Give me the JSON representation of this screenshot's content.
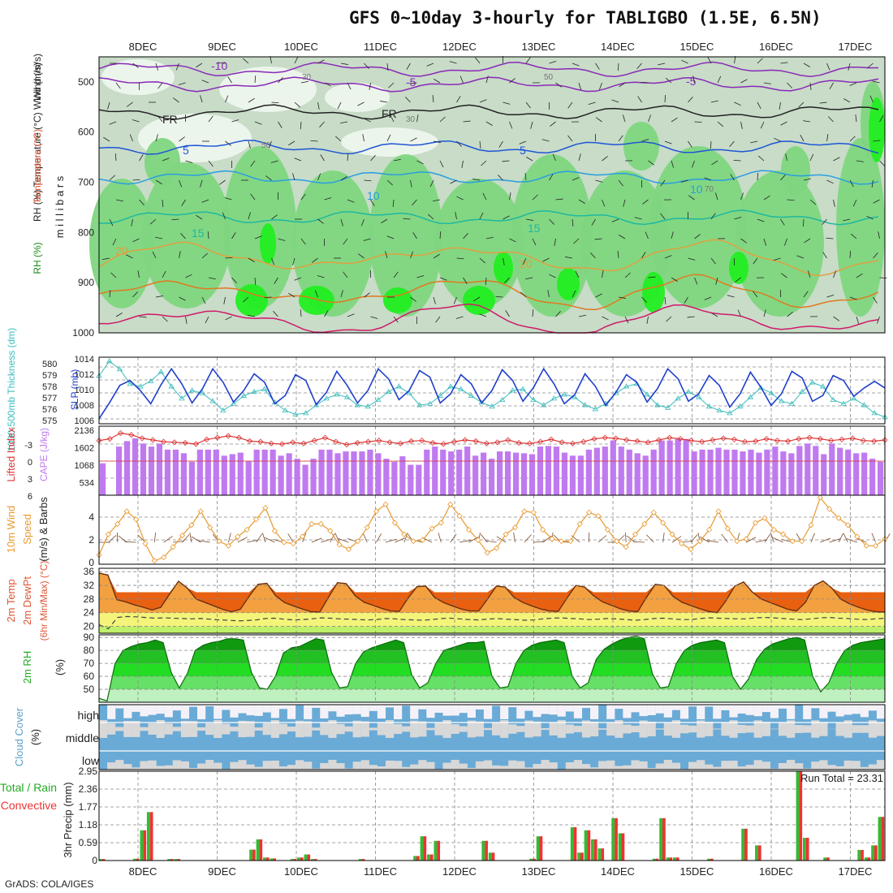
{
  "title": "GFS 0~10day 3-hourly for TABLIGBO (1.5E, 6.5N)",
  "credit": "GrADS: COLA/IGES",
  "colors": {
    "rh_light": "#eef6ee",
    "rh_mid": "#c8dcc8",
    "rh_green": "#7fd67f",
    "rh_bright": "#22ee22",
    "slp": "#1f3fcc",
    "thickness": "#3cbcbc",
    "lifted": "#dd3333",
    "cape": "#c07af0",
    "wind": "#e89a30",
    "barb": "#7a4a2a",
    "cloud_blue": "#6aaad6",
    "cloud_gray": "#d8d8d8",
    "precip_total": "#33bb33",
    "precip_conv": "#ee3333"
  },
  "chart_data": [
    {
      "type": "heatmap",
      "name": "upper_air",
      "xlabels": [
        "8DEC",
        "9DEC",
        "10DEC",
        "11DEC",
        "12DEC",
        "13DEC",
        "14DEC",
        "15DEC",
        "16DEC",
        "17DEC"
      ],
      "ylabel": "(millibars)",
      "ylabel_text": "m i l l i b a r s",
      "legend_labels": [
        "RH (%)",
        "Temperature (°C)",
        "Wind (m/s)"
      ],
      "yticks": [
        "500",
        "600",
        "700",
        "800",
        "900",
        "1000"
      ],
      "ylim": [
        450,
        1000
      ],
      "isotherm_labels": [
        "-10",
        "-5",
        "FR",
        "5",
        "10",
        "15",
        "20",
        "-5",
        "FR",
        "5",
        "10",
        "15",
        "20"
      ],
      "rh_labels": [
        "30",
        "50",
        "30",
        "50",
        "70"
      ]
    },
    {
      "type": "line",
      "name": "slp_thickness",
      "ylabel_left": "1000-500mb Thickness (dm)",
      "ylabel_right": "SLP (mb)",
      "yticks_left": [
        "580",
        "579",
        "578",
        "577",
        "576",
        "575"
      ],
      "yticks_right": [
        "1014",
        "1012",
        "1010",
        "1008",
        "1006"
      ],
      "slp_range": [
        1006,
        1014
      ],
      "slp": [
        1006.6,
        1008.5,
        1010.6,
        1011.2,
        1010.0,
        1008.4,
        1010.7,
        1012.6,
        1010.8,
        1008.5,
        1010.2,
        1012.6,
        1011.0,
        1008.6,
        1010.0,
        1012.0,
        1011.0,
        1008.4,
        1009.4,
        1011.9,
        1011.2,
        1008.3,
        1009.8,
        1012.3,
        1010.6,
        1008.5,
        1010.0,
        1012.6,
        1011.4,
        1008.9,
        1010.0,
        1012.4,
        1011.6,
        1008.5,
        1009.6,
        1011.9,
        1010.8,
        1008.5,
        1010.0,
        1012.5,
        1011.2,
        1008.7,
        1010.3,
        1012.6,
        1010.8,
        1008.4,
        1009.5,
        1012.0,
        1010.5,
        1008.2,
        1009.8,
        1011.9,
        1011.0,
        1008.6,
        1010.2,
        1012.6,
        1011.4,
        1008.7,
        1009.6,
        1011.8,
        1010.6,
        1008.0,
        1009.6,
        1012.2,
        1010.4,
        1008.2,
        1009.6,
        1012.3,
        1011.5,
        1008.7,
        1009.4,
        1011.8,
        1011.2,
        1009.3,
        1010.3,
        1011.1,
        1010.3
      ],
      "thickness": [
        578.6,
        579.7,
        579.1,
        578.0,
        577.8,
        578.2,
        578.9,
        577.8,
        576.9,
        577.5,
        577.3,
        576.7,
        576.0,
        576.5,
        577.1,
        577.4,
        577.6,
        576.6,
        576.0,
        575.7,
        575.8,
        576.4,
        576.9,
        577.2,
        577.0,
        576.4,
        576.3,
        576.8,
        577.4,
        577.8,
        577.3,
        576.4,
        576.5,
        577.1,
        577.8,
        577.6,
        577.1,
        576.6,
        576.3,
        576.8,
        577.5,
        577.6,
        576.8,
        576.4,
        576.9,
        577.2,
        577.0,
        576.4,
        576.1,
        576.5,
        577.3,
        577.8,
        578.0,
        577.2,
        576.4,
        576.2,
        576.9,
        577.4,
        577.0,
        576.3,
        576.0,
        575.8,
        576.3,
        577.0,
        577.7,
        577.3,
        576.7,
        576.5,
        577.4,
        578.1,
        577.8,
        576.8,
        576.5,
        576.9,
        576.4,
        575.8,
        575.5
      ]
    },
    {
      "type": "bar",
      "name": "cape_li",
      "ylabel_left": "Lifted Index",
      "ylabel_right": "CAPE (J/kg)",
      "yticks_left": [
        "-3",
        "0",
        "3",
        "6"
      ],
      "yticks_right": [
        "2136",
        "1602",
        "1068",
        "534"
      ],
      "cape_range": [
        0,
        2136
      ],
      "cape": [
        1050,
        0,
        1600,
        1780,
        1870,
        1700,
        1600,
        1700,
        1500,
        1500,
        1380,
        1100,
        1500,
        1500,
        1500,
        1300,
        1350,
        1400,
        1120,
        1500,
        1500,
        1500,
        1300,
        1380,
        1200,
        1000,
        1200,
        1500,
        1500,
        1380,
        1440,
        1440,
        1440,
        1500,
        1380,
        1200,
        1100,
        1280,
        1000,
        1000,
        1500,
        1600,
        1500,
        1440,
        1500,
        1600,
        1300,
        1400,
        1200,
        1440,
        1440,
        1400,
        1380,
        1350,
        1600,
        1620,
        1600,
        1400,
        1300,
        1300,
        1500,
        1560,
        1600,
        1800,
        1600,
        1500,
        1380,
        1300,
        1500,
        1800,
        1800,
        1850,
        1850,
        1440,
        1500,
        1500,
        1560,
        1500,
        1500,
        1440,
        1500,
        1400,
        1500,
        1600,
        1440,
        1380,
        1620,
        1700,
        1620,
        1350,
        1700,
        1560,
        1500,
        1380,
        1400,
        1200,
        1100
      ],
      "li": [
        -3.5,
        -3.8,
        -4.8,
        -4.5,
        -3.9,
        -3.6,
        -3.3,
        -3.2,
        -3.1,
        -2.9,
        -3.7,
        -4.0,
        -4.3,
        -4.0,
        -3.4,
        -3.3,
        -3.0,
        -2.9,
        -3.2,
        -3.0,
        -3.5,
        -4.0,
        -3.3,
        -2.8,
        -3.1,
        -3.3,
        -3.5,
        -3.2,
        -3.0,
        -3.4,
        -3.5,
        -3.1,
        -2.9,
        -3.3,
        -3.6,
        -3.4,
        -3.0,
        -3.2,
        -3.6,
        -3.1,
        -3.0,
        -3.3,
        -3.7,
        -3.2,
        -3.0,
        -3.3,
        -3.8,
        -4.0,
        -3.9,
        -3.6,
        -3.4,
        -3.2,
        -3.6,
        -4.0,
        -3.8,
        -3.5,
        -3.3,
        -3.6,
        -3.9,
        -3.7,
        -3.3,
        -3.4,
        -3.8,
        -3.5,
        -3.4,
        -3.8,
        -4.0,
        -3.8,
        -3.5,
        -3.7,
        -3.9,
        -3.5,
        -3.4,
        -3.6
      ]
    },
    {
      "type": "line",
      "name": "wind10m",
      "ylabel_lines": [
        "10m Wind",
        "Speed",
        "(m/s) & Barbs"
      ],
      "yticks": [
        "4",
        "2",
        "0"
      ],
      "ylim": [
        0,
        6
      ],
      "speed": [
        0.8,
        2.6,
        3.5,
        4.6,
        3.9,
        1.8,
        0.3,
        0.6,
        1.5,
        2.5,
        3.4,
        4.6,
        3.2,
        2.0,
        1.6,
        2.4,
        3.0,
        3.9,
        4.9,
        2.9,
        1.9,
        1.8,
        2.4,
        3.5,
        3.5,
        2.9,
        1.7,
        1.3,
        2.0,
        3.2,
        4.6,
        5.2,
        3.6,
        2.6,
        2.0,
        2.1,
        3.1,
        3.6,
        5.2,
        4.2,
        3.0,
        2.1,
        1.0,
        1.4,
        2.6,
        3.2,
        4.6,
        4.5,
        3.0,
        2.2,
        2.0,
        2.0,
        3.5,
        4.5,
        4.2,
        3.0,
        2.0,
        1.5,
        2.6,
        3.5,
        4.5,
        3.6,
        2.6,
        1.8,
        1.3,
        2.0,
        3.0,
        4.6,
        3.1,
        2.0,
        2.2,
        3.6,
        4.0,
        3.0,
        2.6,
        2.0,
        2.0,
        3.4,
        5.8,
        4.8,
        4.0,
        3.4,
        2.4,
        1.6,
        1.6,
        2.2
      ]
    },
    {
      "type": "area",
      "name": "temp2m",
      "ylabel_lines": [
        "2m Temp",
        "2m DewPt",
        "(6hr Min/Max) (°C)"
      ],
      "yticks": [
        "36",
        "32",
        "28",
        "24",
        "20"
      ],
      "ylim": [
        18,
        37
      ],
      "temp": [
        35.6,
        35.0,
        27.8,
        27.2,
        26.3,
        25.6,
        24.8,
        25.6,
        29.5,
        33.2,
        31.2,
        28.0,
        27.0,
        26.0,
        25.0,
        24.3,
        25.0,
        28.8,
        32.3,
        32.6,
        29.0,
        27.0,
        26.0,
        25.1,
        24.3,
        24.2,
        28.6,
        32.8,
        32.5,
        29.0,
        27.1,
        26.2,
        25.3,
        24.5,
        24.4,
        28.3,
        31.6,
        31.8,
        28.5,
        27.0,
        26.0,
        25.1,
        24.5,
        24.5,
        28.0,
        31.8,
        31.5,
        28.5,
        27.0,
        26.0,
        25.1,
        24.5,
        24.4,
        28.3,
        32.0,
        31.5,
        29.0,
        27.2,
        26.2,
        25.2,
        24.5,
        24.3,
        28.5,
        32.3,
        32.0,
        28.8,
        27.1,
        26.1,
        25.2,
        24.4,
        24.0,
        27.5,
        31.8,
        33.0,
        30.0,
        28.0,
        27.0,
        26.0,
        25.0,
        24.5,
        27.0,
        32.0,
        33.3,
        31.2,
        28.0,
        26.6,
        25.6,
        24.8,
        24.3,
        24.2
      ],
      "dewpt": [
        20.5,
        19.3,
        22.6,
        22.9,
        22.8,
        22.6,
        22.4,
        22.5,
        22.4,
        22.3,
        22.2,
        22.3,
        22.1,
        21.9,
        21.8,
        21.6,
        21.7,
        21.9,
        22.3,
        22.4,
        22.1,
        21.9,
        22.0,
        22.2,
        22.5,
        22.4,
        22.2,
        22.1,
        22.0,
        21.9,
        22.0,
        22.3,
        22.2,
        22.0,
        21.9,
        21.8,
        22.0,
        22.3,
        22.4,
        22.2,
        22.0,
        21.9,
        22.1,
        22.3,
        22.1,
        22.0,
        21.8,
        21.9,
        22.2,
        22.4,
        22.5,
        22.3,
        22.2,
        22.0,
        22.1,
        22.3,
        22.2,
        22.0,
        21.8,
        22.0,
        22.3,
        22.4,
        22.2,
        22.0,
        22.0,
        22.3,
        22.5,
        22.4,
        22.3,
        22.2,
        22.2,
        22.5,
        22.6,
        22.5,
        22.3,
        22.1,
        22.0,
        22.2,
        22.5,
        22.6,
        22.4,
        22.3,
        22.1,
        22.0,
        22.2,
        22.4
      ]
    },
    {
      "type": "area",
      "name": "rh2m",
      "ylabel_lines": [
        "2m RH",
        "(%)"
      ],
      "yticks": [
        "90",
        "80",
        "70",
        "60",
        "50"
      ],
      "ylim": [
        40,
        92
      ],
      "rh": [
        43,
        41,
        70,
        80,
        83,
        85,
        86,
        88,
        86,
        63,
        51,
        62,
        80,
        84,
        86,
        87,
        89,
        89,
        88,
        63,
        51,
        50,
        60,
        78,
        82,
        83,
        86,
        89,
        88,
        63,
        51,
        52,
        70,
        79,
        82,
        84,
        86,
        88,
        86,
        61,
        51,
        55,
        70,
        80,
        82,
        84,
        86,
        86,
        87,
        60,
        51,
        52,
        70,
        80,
        84,
        86,
        87,
        88,
        86,
        60,
        51,
        55,
        73,
        81,
        85,
        88,
        90,
        91,
        89,
        62,
        51,
        52,
        70,
        80,
        84,
        86,
        87,
        88,
        86,
        60,
        50,
        58,
        73,
        81,
        85,
        87,
        89,
        90,
        88,
        60,
        48,
        55,
        70,
        80,
        84,
        86,
        87,
        88,
        89
      ]
    },
    {
      "type": "heatmap",
      "name": "cloud_cover",
      "ylabel_lines": [
        "Cloud Cover",
        "(%)"
      ],
      "levels": [
        "high",
        "middle",
        "low"
      ]
    },
    {
      "type": "bar",
      "name": "precip",
      "ylabel": "3hr Precip (mm)",
      "legend_lines": [
        "Total / Rain",
        "Convective"
      ],
      "run_total": "Run Total = 23.31",
      "yticks": [
        "2.95",
        "2.36",
        "1.77",
        "1.18",
        "0.59",
        "0"
      ],
      "ylim": [
        0,
        2.95
      ],
      "precip": [
        0.05,
        0,
        0,
        0,
        0,
        0.06,
        1.0,
        1.6,
        0,
        0,
        0.05,
        0.05,
        0,
        0,
        0,
        0,
        0,
        0,
        0,
        0,
        0,
        0,
        0.36,
        0.7,
        0.1,
        0.07,
        0,
        0,
        0.05,
        0.1,
        0.2,
        0.05,
        0,
        0,
        0,
        0,
        0,
        0,
        0.05,
        0,
        0,
        0,
        0,
        0,
        0,
        0,
        0.15,
        0.8,
        0.2,
        0.65,
        0,
        0,
        0,
        0,
        0,
        0,
        0.65,
        0.26,
        0,
        0,
        0,
        0,
        0,
        0.06,
        0.8,
        0,
        0,
        0,
        0,
        1.1,
        0.26,
        1.0,
        0.7,
        0.4,
        0,
        1.4,
        0.9,
        0,
        0,
        0,
        0,
        0.06,
        1.4,
        0.1,
        0.1,
        0,
        0,
        0,
        0,
        0.06,
        0,
        0,
        0,
        0,
        1.05,
        0,
        0.5,
        0,
        0,
        0,
        0,
        0,
        2.95,
        0.75,
        0,
        0,
        0.1,
        0,
        0,
        0,
        0,
        0.35,
        0.1,
        0.5,
        1.44
      ]
    }
  ]
}
